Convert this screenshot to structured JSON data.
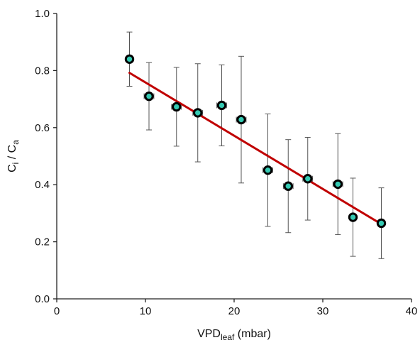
{
  "chart_data": {
    "type": "scatter",
    "title": "",
    "xlabel": {
      "main": "VPD",
      "sub": "leaf",
      "rest": " (mbar)"
    },
    "ylabel": {
      "a": "C",
      "a_sub": "i",
      "sep": " / ",
      "b": "C",
      "b_sub": "a"
    },
    "xlim": [
      0,
      40
    ],
    "ylim": [
      0.0,
      1.0
    ],
    "x_ticks": [
      "0",
      "10",
      "20",
      "30",
      "40"
    ],
    "y_ticks": [
      "0.0",
      "0.2",
      "0.4",
      "0.6",
      "0.8",
      "1.0"
    ],
    "grid": false,
    "legend": "none",
    "points": [
      {
        "x": 8.2,
        "y": 0.84,
        "y_err": 0.095,
        "x_err": 0.0
      },
      {
        "x": 10.4,
        "y": 0.71,
        "y_err": 0.118,
        "x_err": 0.55
      },
      {
        "x": 13.5,
        "y": 0.673,
        "y_err": 0.138,
        "x_err": 0.55
      },
      {
        "x": 15.9,
        "y": 0.652,
        "y_err": 0.172,
        "x_err": 0.55
      },
      {
        "x": 18.6,
        "y": 0.678,
        "y_err": 0.142,
        "x_err": 0.55
      },
      {
        "x": 20.8,
        "y": 0.628,
        "y_err": 0.222,
        "x_err": 0.55
      },
      {
        "x": 23.8,
        "y": 0.451,
        "y_err": 0.197,
        "x_err": 0.55
      },
      {
        "x": 26.1,
        "y": 0.395,
        "y_err": 0.163,
        "x_err": 0.55
      },
      {
        "x": 28.3,
        "y": 0.421,
        "y_err": 0.145,
        "x_err": 0.55
      },
      {
        "x": 31.7,
        "y": 0.402,
        "y_err": 0.177,
        "x_err": 0.55
      },
      {
        "x": 33.4,
        "y": 0.286,
        "y_err": 0.137,
        "x_err": 0.3
      },
      {
        "x": 36.6,
        "y": 0.265,
        "y_err": 0.124,
        "x_err": 0.0
      }
    ],
    "fit_line": {
      "x": [
        8.2,
        36.6
      ],
      "y": [
        0.792,
        0.262
      ]
    },
    "colors": {
      "marker_fill": "#35c9b2",
      "marker_edge": "#000000",
      "error_bar": "#555555",
      "fit_line": "#c00000",
      "axis": "#222222"
    }
  }
}
